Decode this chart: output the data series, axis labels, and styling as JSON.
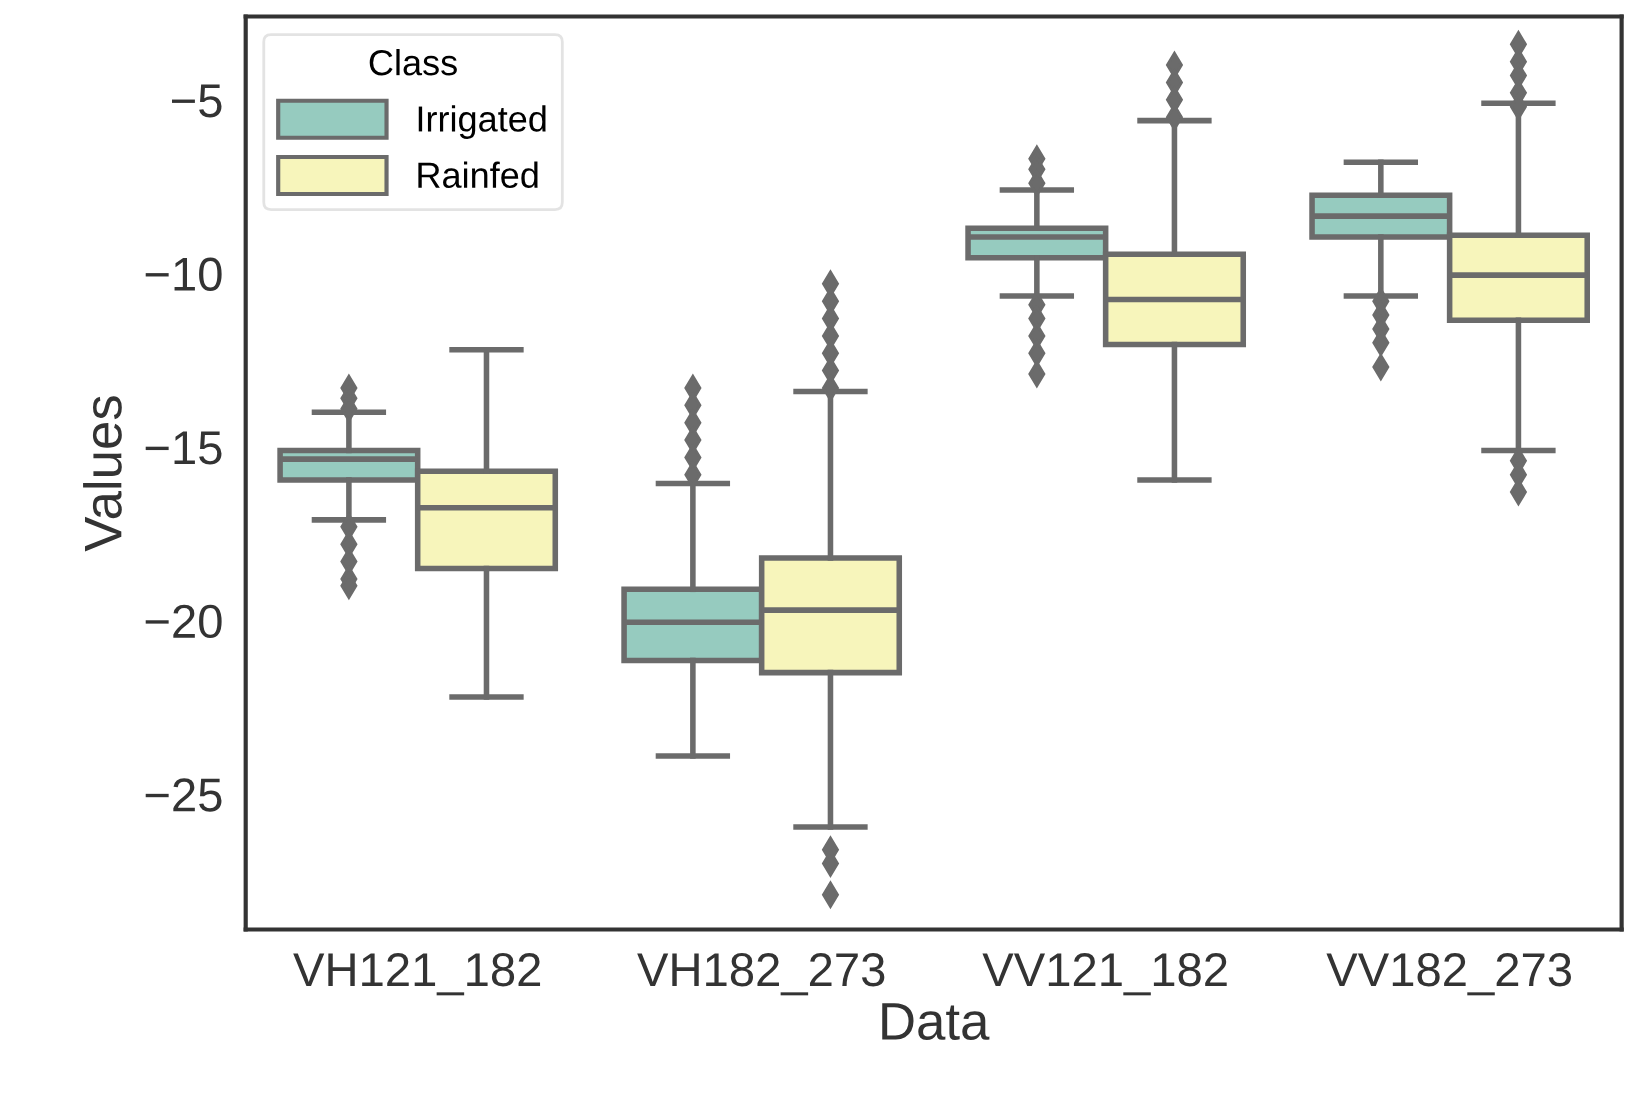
{
  "chart_data": {
    "type": "box",
    "xlabel": "Data",
    "ylabel": "Values",
    "legend_title": "Class",
    "legend": "top left",
    "grid": false,
    "categories": [
      "VH121_182",
      "VH182_273",
      "VV121_182",
      "VV182_273"
    ],
    "ylim": [
      -28.9,
      -2.6
    ],
    "yticks": [
      {
        "value": -5,
        "label": "−5"
      },
      {
        "value": -10,
        "label": "−10"
      },
      {
        "value": -15,
        "label": "−15"
      },
      {
        "value": -20,
        "label": "−20"
      },
      {
        "value": -25,
        "label": "−25"
      }
    ],
    "series": [
      {
        "name": "Irrigated",
        "color": "#96cbbf",
        "boxes": [
          {
            "low": -17.1,
            "q1": -15.95,
            "median": -15.35,
            "q3": -15.1,
            "high": -14.0,
            "outliers": [
              -13.3,
              -13.6,
              -13.9,
              -17.3,
              -17.8,
              -18.3,
              -18.8,
              -19.0
            ]
          },
          {
            "low": -23.9,
            "q1": -21.15,
            "median": -20.05,
            "q3": -19.1,
            "high": -16.05,
            "outliers": [
              -13.3,
              -13.8,
              -14.3,
              -14.8,
              -15.3,
              -15.8
            ]
          },
          {
            "low": -10.65,
            "q1": -9.55,
            "median": -8.95,
            "q3": -8.7,
            "high": -7.6,
            "outliers": [
              -6.7,
              -7.0,
              -7.4,
              -10.9,
              -11.3,
              -11.8,
              -12.3,
              -12.9
            ]
          },
          {
            "low": -10.65,
            "q1": -8.95,
            "median": -8.35,
            "q3": -7.75,
            "high": -6.8,
            "outliers": [
              -10.8,
              -11.2,
              -11.6,
              -12.0,
              -12.7
            ]
          }
        ]
      },
      {
        "name": "Rainfed",
        "color": "#f7f5bb",
        "boxes": [
          {
            "low": -22.2,
            "q1": -18.5,
            "median": -16.75,
            "q3": -15.7,
            "high": -12.2
          },
          {
            "low": -25.95,
            "q1": -21.5,
            "median": -19.7,
            "q3": -18.2,
            "high": -13.4,
            "outliers": [
              -10.3,
              -10.8,
              -11.3,
              -11.8,
              -12.3,
              -12.8,
              -13.3,
              -26.6,
              -27.0,
              -27.9
            ]
          },
          {
            "low": -15.95,
            "q1": -12.05,
            "median": -10.75,
            "q3": -9.45,
            "high": -5.6,
            "outliers": [
              -4.0,
              -4.5,
              -5.0,
              -5.5
            ]
          },
          {
            "low": -15.1,
            "q1": -11.35,
            "median": -10.05,
            "q3": -8.9,
            "high": -5.1,
            "outliers": [
              -3.4,
              -3.9,
              -4.3,
              -4.8,
              -5.2,
              -15.4,
              -15.8,
              -16.3
            ]
          }
        ]
      }
    ]
  }
}
